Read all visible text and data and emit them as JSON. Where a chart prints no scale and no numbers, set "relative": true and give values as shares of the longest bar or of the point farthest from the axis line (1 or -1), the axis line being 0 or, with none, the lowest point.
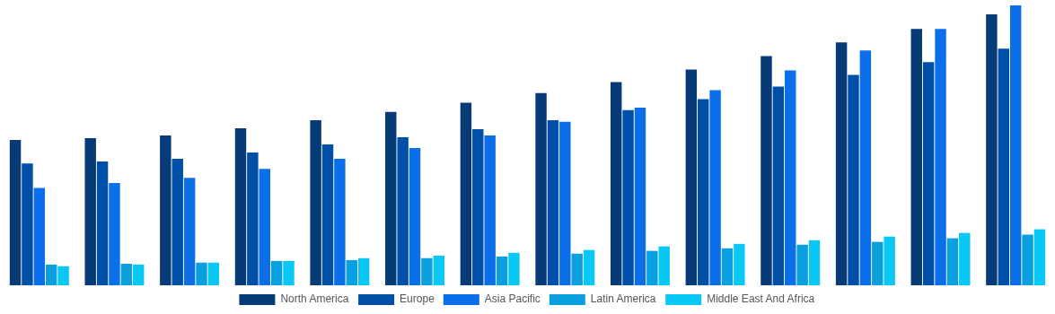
{
  "chart_data": {
    "type": "bar",
    "relative": true,
    "legend": "bottom",
    "grid": false,
    "categories": [
      null,
      null,
      null,
      null,
      null,
      null,
      null,
      null,
      null,
      null,
      null,
      null,
      null,
      null
    ],
    "series": [
      {
        "name": "North America",
        "color": "#063b78",
        "values": [
          0.519,
          0.526,
          0.535,
          0.561,
          0.59,
          0.619,
          0.652,
          0.687,
          0.726,
          0.771,
          0.819,
          0.868,
          0.916,
          0.968
        ]
      },
      {
        "name": "Europe",
        "color": "#0050a8",
        "values": [
          0.435,
          0.442,
          0.452,
          0.474,
          0.503,
          0.529,
          0.558,
          0.59,
          0.626,
          0.665,
          0.71,
          0.752,
          0.797,
          0.845
        ]
      },
      {
        "name": "Asia Pacific",
        "color": "#0a6fe8",
        "values": [
          0.348,
          0.365,
          0.384,
          0.416,
          0.452,
          0.49,
          0.535,
          0.584,
          0.635,
          0.697,
          0.768,
          0.839,
          0.916,
          1
        ]
      },
      {
        "name": "Latin America",
        "color": "#0aa0e0",
        "values": [
          0.074,
          0.077,
          0.081,
          0.087,
          0.09,
          0.097,
          0.103,
          0.113,
          0.123,
          0.132,
          0.145,
          0.155,
          0.168,
          0.181
        ]
      },
      {
        "name": "Middle East And Africa",
        "color": "#0ac8f5",
        "values": [
          0.068,
          0.074,
          0.081,
          0.087,
          0.097,
          0.106,
          0.116,
          0.126,
          0.139,
          0.148,
          0.161,
          0.174,
          0.187,
          0.2
        ]
      }
    ]
  }
}
